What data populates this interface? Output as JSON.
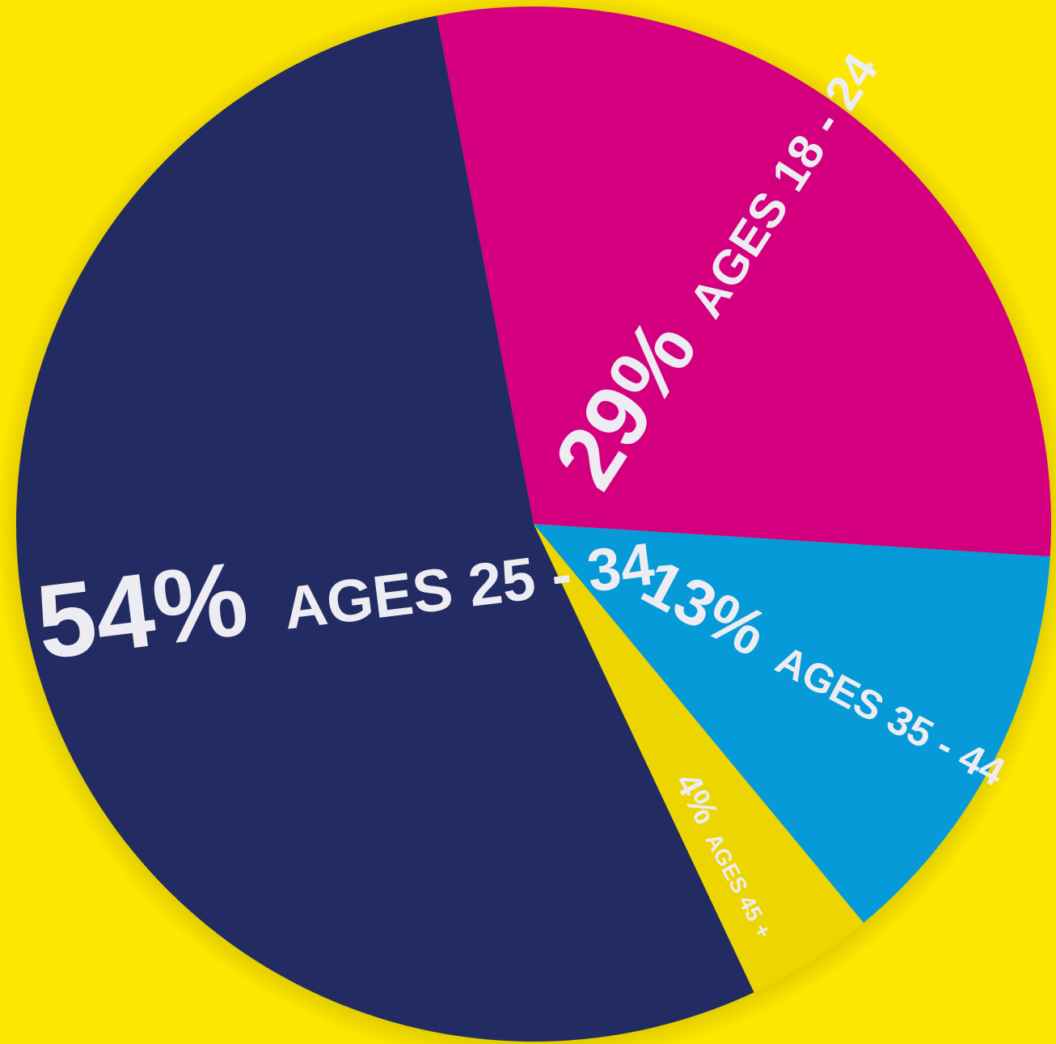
{
  "chart_data": {
    "type": "pie",
    "categories": [
      "AGES 18 - 24",
      "AGES 35 - 44",
      "AGES 45 +",
      "AGES 25 - 34"
    ],
    "values": [
      29,
      13,
      4,
      54
    ],
    "value_labels": [
      "29%",
      "13%",
      "4%",
      "54%"
    ],
    "colors": [
      "#d5007f",
      "#069bd8",
      "#ecd500",
      "#232c62"
    ]
  }
}
